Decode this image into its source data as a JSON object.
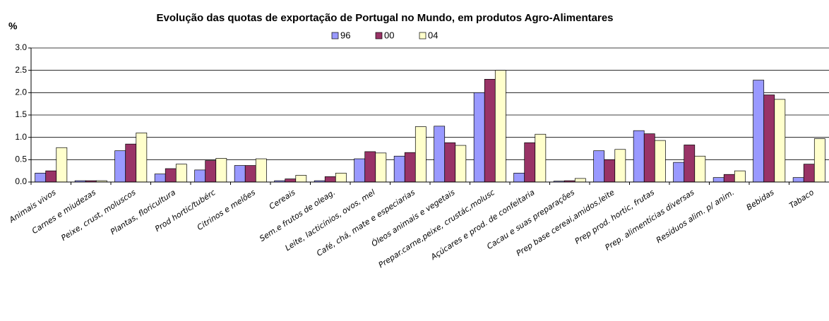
{
  "chart_data": {
    "type": "bar",
    "title": "Evolução das quotas de exportação de Portugal no Mundo, em produtos Agro-Alimentares",
    "y_label": "%",
    "categories": [
      "Animais vivos",
      "Carnes e miudezas",
      "Peixe, crust, moluscos",
      "Plantas, floricultura",
      "Prod hortic/tubérc",
      "Citrinos e melões",
      "Cereais",
      "Sem.e frutos de oleag.",
      "Leite, lacticínios, ovos, mel",
      "Café, chá, mate e especiarias",
      "Óleos animais e vegetais",
      "Prepar.carne,peixe, crustác,molusc",
      "Açúcares e prod. de confeitaria",
      "Cacau e suas preparações",
      "Prep base cereai,amidos,leite",
      "Prep prod. hortic, frutas",
      "Prep. alimentícias diversas",
      "Resíduos alim. p/ anim.",
      "Bebidas",
      "Tabaco"
    ],
    "series": [
      {
        "name": "96",
        "color": "#9999ff",
        "values": [
          0.2,
          0.03,
          0.7,
          0.18,
          0.27,
          0.37,
          0.03,
          0.03,
          0.52,
          0.58,
          1.25,
          2.0,
          0.2,
          0.02,
          0.7,
          1.15,
          0.44,
          0.1,
          2.28,
          0.1
        ]
      },
      {
        "name": "00",
        "color": "#993366",
        "values": [
          0.25,
          0.03,
          0.85,
          0.3,
          0.48,
          0.37,
          0.07,
          0.12,
          0.68,
          0.66,
          0.88,
          2.3,
          0.88,
          0.03,
          0.5,
          1.08,
          0.83,
          0.17,
          1.95,
          0.4
        ]
      },
      {
        "name": "04",
        "color": "#ffffcc",
        "values": [
          0.77,
          0.03,
          1.1,
          0.4,
          0.53,
          0.52,
          0.15,
          0.2,
          0.65,
          1.24,
          0.82,
          2.5,
          1.07,
          0.08,
          0.73,
          0.93,
          0.58,
          0.25,
          1.85,
          0.97
        ]
      }
    ],
    "ylim": [
      0,
      3
    ],
    "yticks": [
      {
        "value": 0,
        "label": "0.0"
      },
      {
        "value": 0.5,
        "label": "0.5"
      },
      {
        "value": 1,
        "label": "1.0"
      },
      {
        "value": 1.5,
        "label": "1.5"
      },
      {
        "value": 2,
        "label": "2.0"
      },
      {
        "value": 2.5,
        "label": "2.5"
      },
      {
        "value": 3,
        "label": "3.0"
      }
    ],
    "grid": true,
    "legend": "top"
  }
}
